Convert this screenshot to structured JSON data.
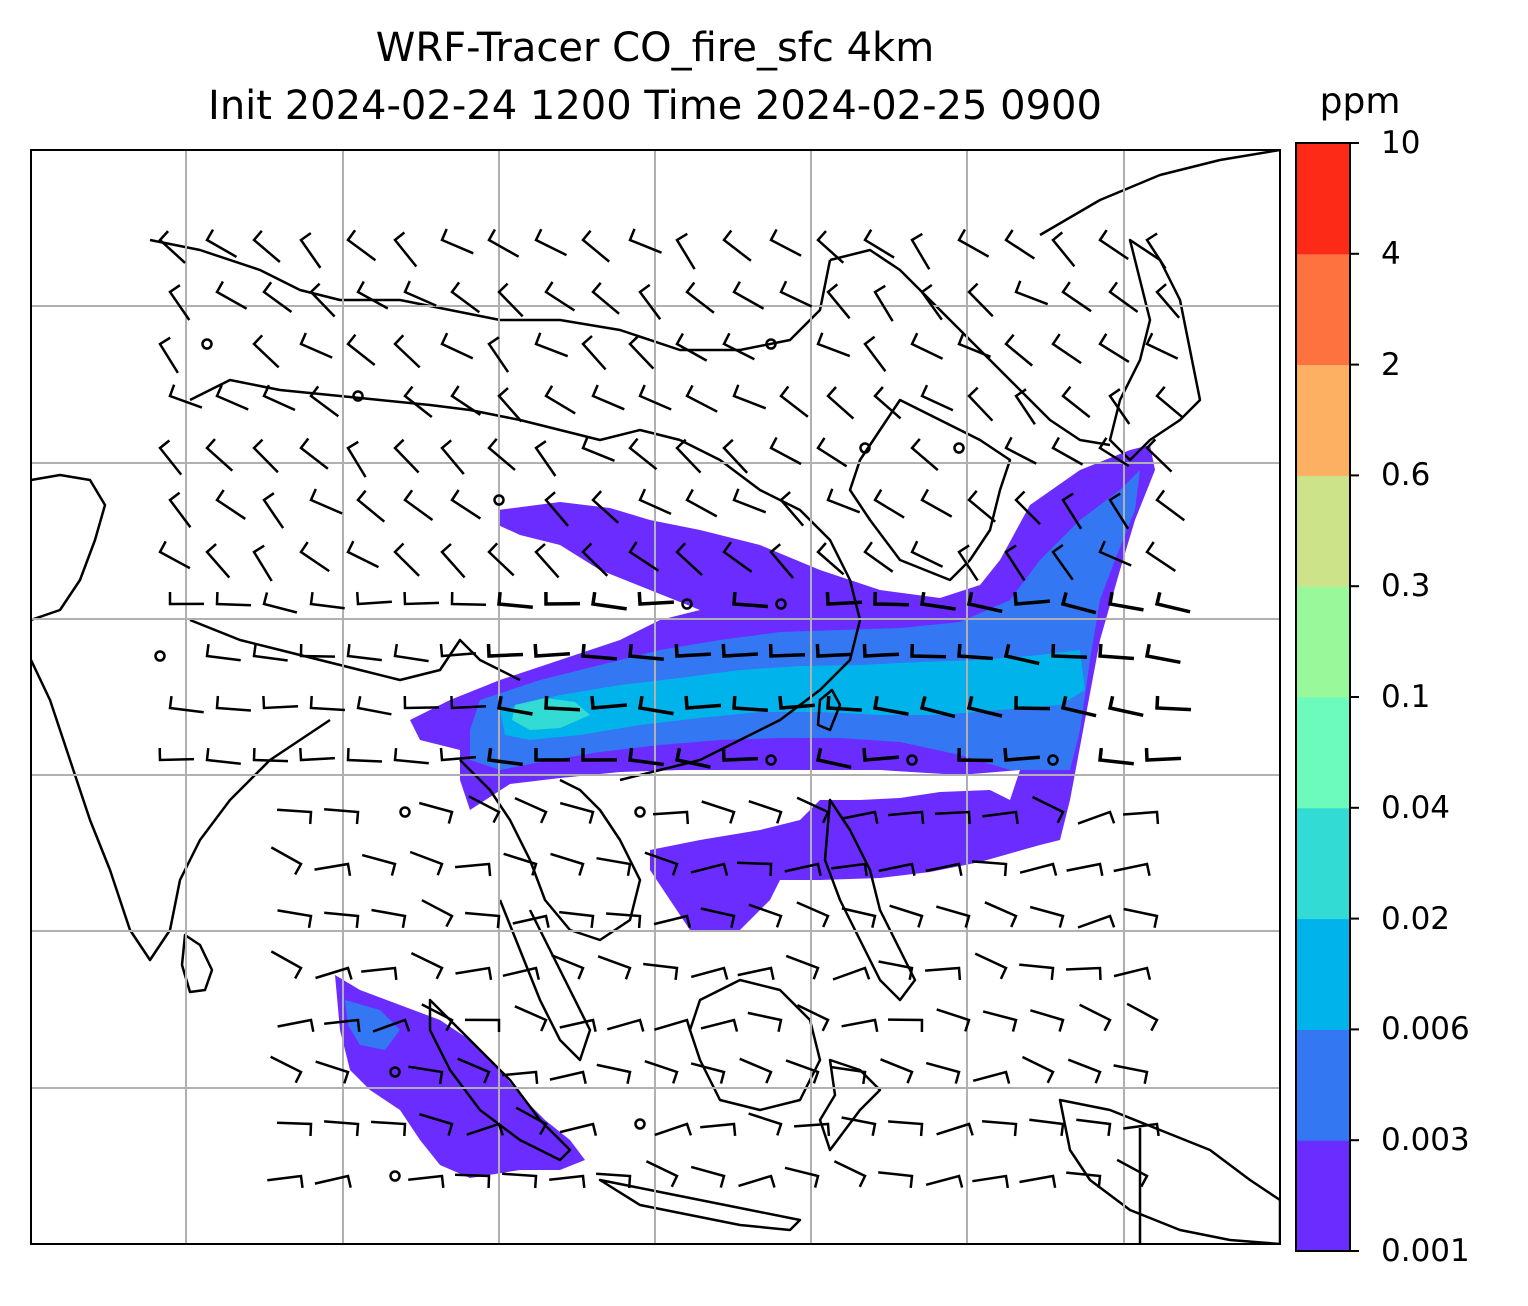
{
  "title": {
    "line1": "WRF-Tracer CO_fire_sfc 4km",
    "line2": "Init 2024-02-24 1200 Time 2024-02-25 0900"
  },
  "colorbar": {
    "unit": "ppm",
    "ticks": [
      "0.001",
      "0.003",
      "0.006",
      "0.02",
      "0.04",
      "0.1",
      "0.3",
      "0.6",
      "2",
      "4",
      "10"
    ],
    "colors": [
      "#6a2cff",
      "#3377f2",
      "#00b4eb",
      "#32dcd4",
      "#6cfbbd",
      "#98f89a",
      "#cde38a",
      "#fdb062",
      "#fe7240",
      "#fe2a18"
    ]
  },
  "map": {
    "fields": [
      {
        "level": "0.001",
        "color": "#6a2cff"
      },
      {
        "level": "0.003",
        "color": "#3377f2"
      },
      {
        "level": "0.006",
        "color": "#00b4eb"
      },
      {
        "level": "0.02",
        "color": "#32dcd4"
      }
    ],
    "wind_barbs": "black",
    "coastlines": "black",
    "gridlines": "#b0b0b0"
  }
}
